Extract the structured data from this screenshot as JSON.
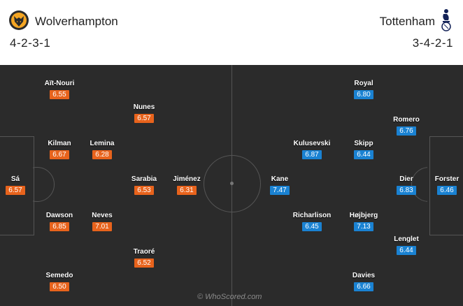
{
  "home": {
    "name": "Wolverhampton",
    "formation": "4-2-3-1",
    "crest_icon": "wolf-head-icon",
    "color": "#e8631c",
    "players": [
      {
        "name": "Aït-Nouri",
        "rating": "6.55"
      },
      {
        "name": "Nunes",
        "rating": "6.57"
      },
      {
        "name": "Kilman",
        "rating": "6.67"
      },
      {
        "name": "Lemina",
        "rating": "6.28"
      },
      {
        "name": "Sá",
        "rating": "6.57"
      },
      {
        "name": "Sarabia",
        "rating": "6.53"
      },
      {
        "name": "Jiménez",
        "rating": "6.31"
      },
      {
        "name": "Dawson",
        "rating": "6.85"
      },
      {
        "name": "Neves",
        "rating": "7.01"
      },
      {
        "name": "Traoré",
        "rating": "6.52"
      },
      {
        "name": "Semedo",
        "rating": "6.50"
      }
    ]
  },
  "away": {
    "name": "Tottenham",
    "formation": "3-4-2-1",
    "crest_icon": "cockerel-icon",
    "color": "#1a82d2",
    "players": [
      {
        "name": "Royal",
        "rating": "6.80"
      },
      {
        "name": "Romero",
        "rating": "6.76"
      },
      {
        "name": "Kulusevski",
        "rating": "6.87"
      },
      {
        "name": "Skipp",
        "rating": "6.44"
      },
      {
        "name": "Kane",
        "rating": "7.47"
      },
      {
        "name": "Dier",
        "rating": "6.83"
      },
      {
        "name": "Forster",
        "rating": "6.46"
      },
      {
        "name": "Richarlison",
        "rating": "6.45"
      },
      {
        "name": "Højbjerg",
        "rating": "7.13"
      },
      {
        "name": "Lenglet",
        "rating": "6.44"
      },
      {
        "name": "Davies",
        "rating": "6.66"
      }
    ]
  },
  "watermark": "© WhoScored.com"
}
